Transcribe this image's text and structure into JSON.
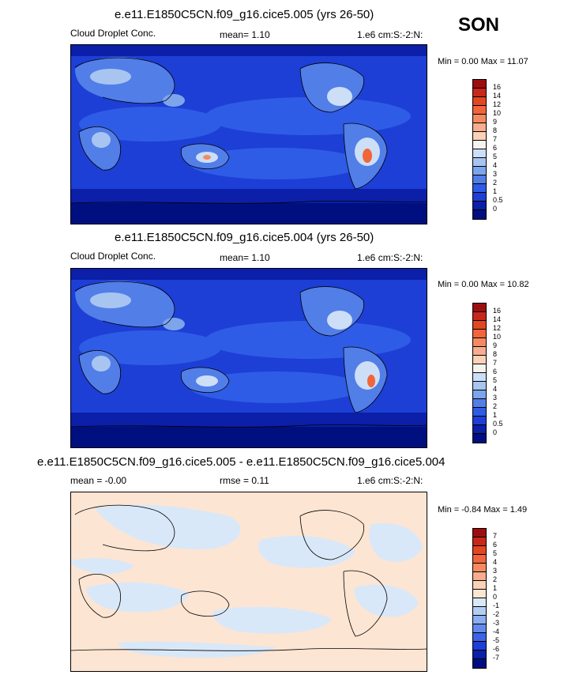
{
  "season": "SON",
  "panels": [
    {
      "title": "e.e11.E1850C5CN.f09_g16.cice5.005 (yrs 26-50)",
      "left_label": "Cloud Droplet Conc.",
      "center_label": "mean=  1.10",
      "right_label": "1.e6 cm:S:-2:N:",
      "minmax": "Min =  0.00 Max =  11.07",
      "levels": [
        "16",
        "14",
        "12",
        "10",
        "9",
        "8",
        "7",
        "6",
        "5",
        "4",
        "3",
        "2",
        "1",
        "0.5",
        "0"
      ],
      "colors": [
        "#9e0d0d",
        "#c8281a",
        "#e2471f",
        "#f1653a",
        "#f48a61",
        "#f7ad8e",
        "#fbd1b8",
        "#f6f3ef",
        "#cddff7",
        "#a8c5f1",
        "#7da5ec",
        "#527ee8",
        "#2f5ce6",
        "#1d3fd6",
        "#0b1fa8",
        "#000f80"
      ]
    },
    {
      "title": "e.e11.E1850C5CN.f09_g16.cice5.004 (yrs 26-50)",
      "left_label": "Cloud Droplet Conc.",
      "center_label": "mean=  1.10",
      "right_label": "1.e6 cm:S:-2:N:",
      "minmax": "Min =  0.00 Max =  10.82",
      "levels": [
        "16",
        "14",
        "12",
        "10",
        "9",
        "8",
        "7",
        "6",
        "5",
        "4",
        "3",
        "2",
        "1",
        "0.5",
        "0"
      ],
      "colors": [
        "#9e0d0d",
        "#c8281a",
        "#e2471f",
        "#f1653a",
        "#f48a61",
        "#f7ad8e",
        "#fbd1b8",
        "#f6f3ef",
        "#cddff7",
        "#a8c5f1",
        "#7da5ec",
        "#527ee8",
        "#2f5ce6",
        "#1d3fd6",
        "#0b1fa8",
        "#000f80"
      ]
    },
    {
      "title": "e.e11.E1850C5CN.f09_g16.cice5.005 - e.e11.E1850C5CN.f09_g16.cice5.004",
      "left_label": "mean = -0.00",
      "center_label": "rmse =  0.11",
      "right_label": "1.e6 cm:S:-2:N:",
      "minmax": "Min = -0.84 Max =  1.49",
      "levels": [
        "7",
        "6",
        "5",
        "4",
        "3",
        "2",
        "1",
        "0",
        "-1",
        "-2",
        "-3",
        "-4",
        "-5",
        "-6",
        "-7"
      ],
      "colors": [
        "#9e0d0d",
        "#c8281a",
        "#e2471f",
        "#f1653a",
        "#f48a61",
        "#f7ad8e",
        "#fbd1b8",
        "#fde5d3",
        "#d9e8f8",
        "#b3cdf3",
        "#8aaef0",
        "#6389ec",
        "#3d63e6",
        "#1d3fd6",
        "#0b1fa8",
        "#000f80"
      ]
    }
  ]
}
